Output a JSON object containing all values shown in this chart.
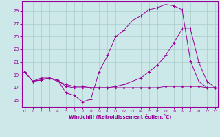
{
  "xlabel": "Windchill (Refroidissement éolien,°C)",
  "bg_color": "#cce8e8",
  "grid_color": "#aacccc",
  "line_color": "#990099",
  "xmin": 0,
  "xmax": 23,
  "ymin": 14,
  "ymax": 30,
  "yticks": [
    15,
    17,
    19,
    21,
    23,
    25,
    27,
    29
  ],
  "xticks": [
    0,
    1,
    2,
    3,
    4,
    5,
    6,
    7,
    8,
    9,
    10,
    11,
    12,
    13,
    14,
    15,
    16,
    17,
    18,
    19,
    20,
    21,
    22,
    23
  ],
  "line1_x": [
    0,
    1,
    2,
    3,
    4,
    5,
    6,
    7,
    8,
    9,
    10,
    11,
    12,
    13,
    14,
    15,
    16,
    17,
    18,
    19,
    20,
    21,
    22,
    23
  ],
  "line1_y": [
    19.5,
    18.0,
    18.2,
    18.5,
    18.2,
    16.2,
    15.8,
    14.8,
    15.2,
    19.5,
    22.0,
    25.0,
    26.0,
    27.5,
    28.2,
    29.2,
    29.5,
    30.0,
    29.8,
    29.2,
    21.2,
    18.0,
    17.0,
    17.0
  ],
  "line2_x": [
    0,
    1,
    2,
    3,
    4,
    5,
    6,
    7,
    8,
    9,
    10,
    11,
    12,
    13,
    14,
    15,
    16,
    17,
    18,
    19,
    20,
    21,
    22,
    23
  ],
  "line2_y": [
    19.5,
    18.0,
    18.2,
    18.5,
    18.0,
    17.5,
    17.2,
    17.2,
    17.0,
    17.0,
    17.0,
    17.2,
    17.5,
    18.0,
    18.5,
    19.5,
    20.5,
    22.0,
    24.0,
    26.2,
    26.2,
    21.0,
    18.0,
    17.0
  ],
  "line3_x": [
    0,
    1,
    2,
    3,
    4,
    5,
    6,
    7,
    8,
    9,
    10,
    11,
    12,
    13,
    14,
    15,
    16,
    17,
    18,
    19,
    20,
    21,
    22,
    23
  ],
  "line3_y": [
    19.5,
    18.0,
    18.5,
    18.5,
    18.2,
    17.2,
    17.0,
    17.0,
    17.0,
    17.0,
    17.0,
    17.0,
    17.0,
    17.0,
    17.0,
    17.0,
    17.0,
    17.2,
    17.2,
    17.2,
    17.2,
    17.2,
    17.0,
    17.0
  ]
}
